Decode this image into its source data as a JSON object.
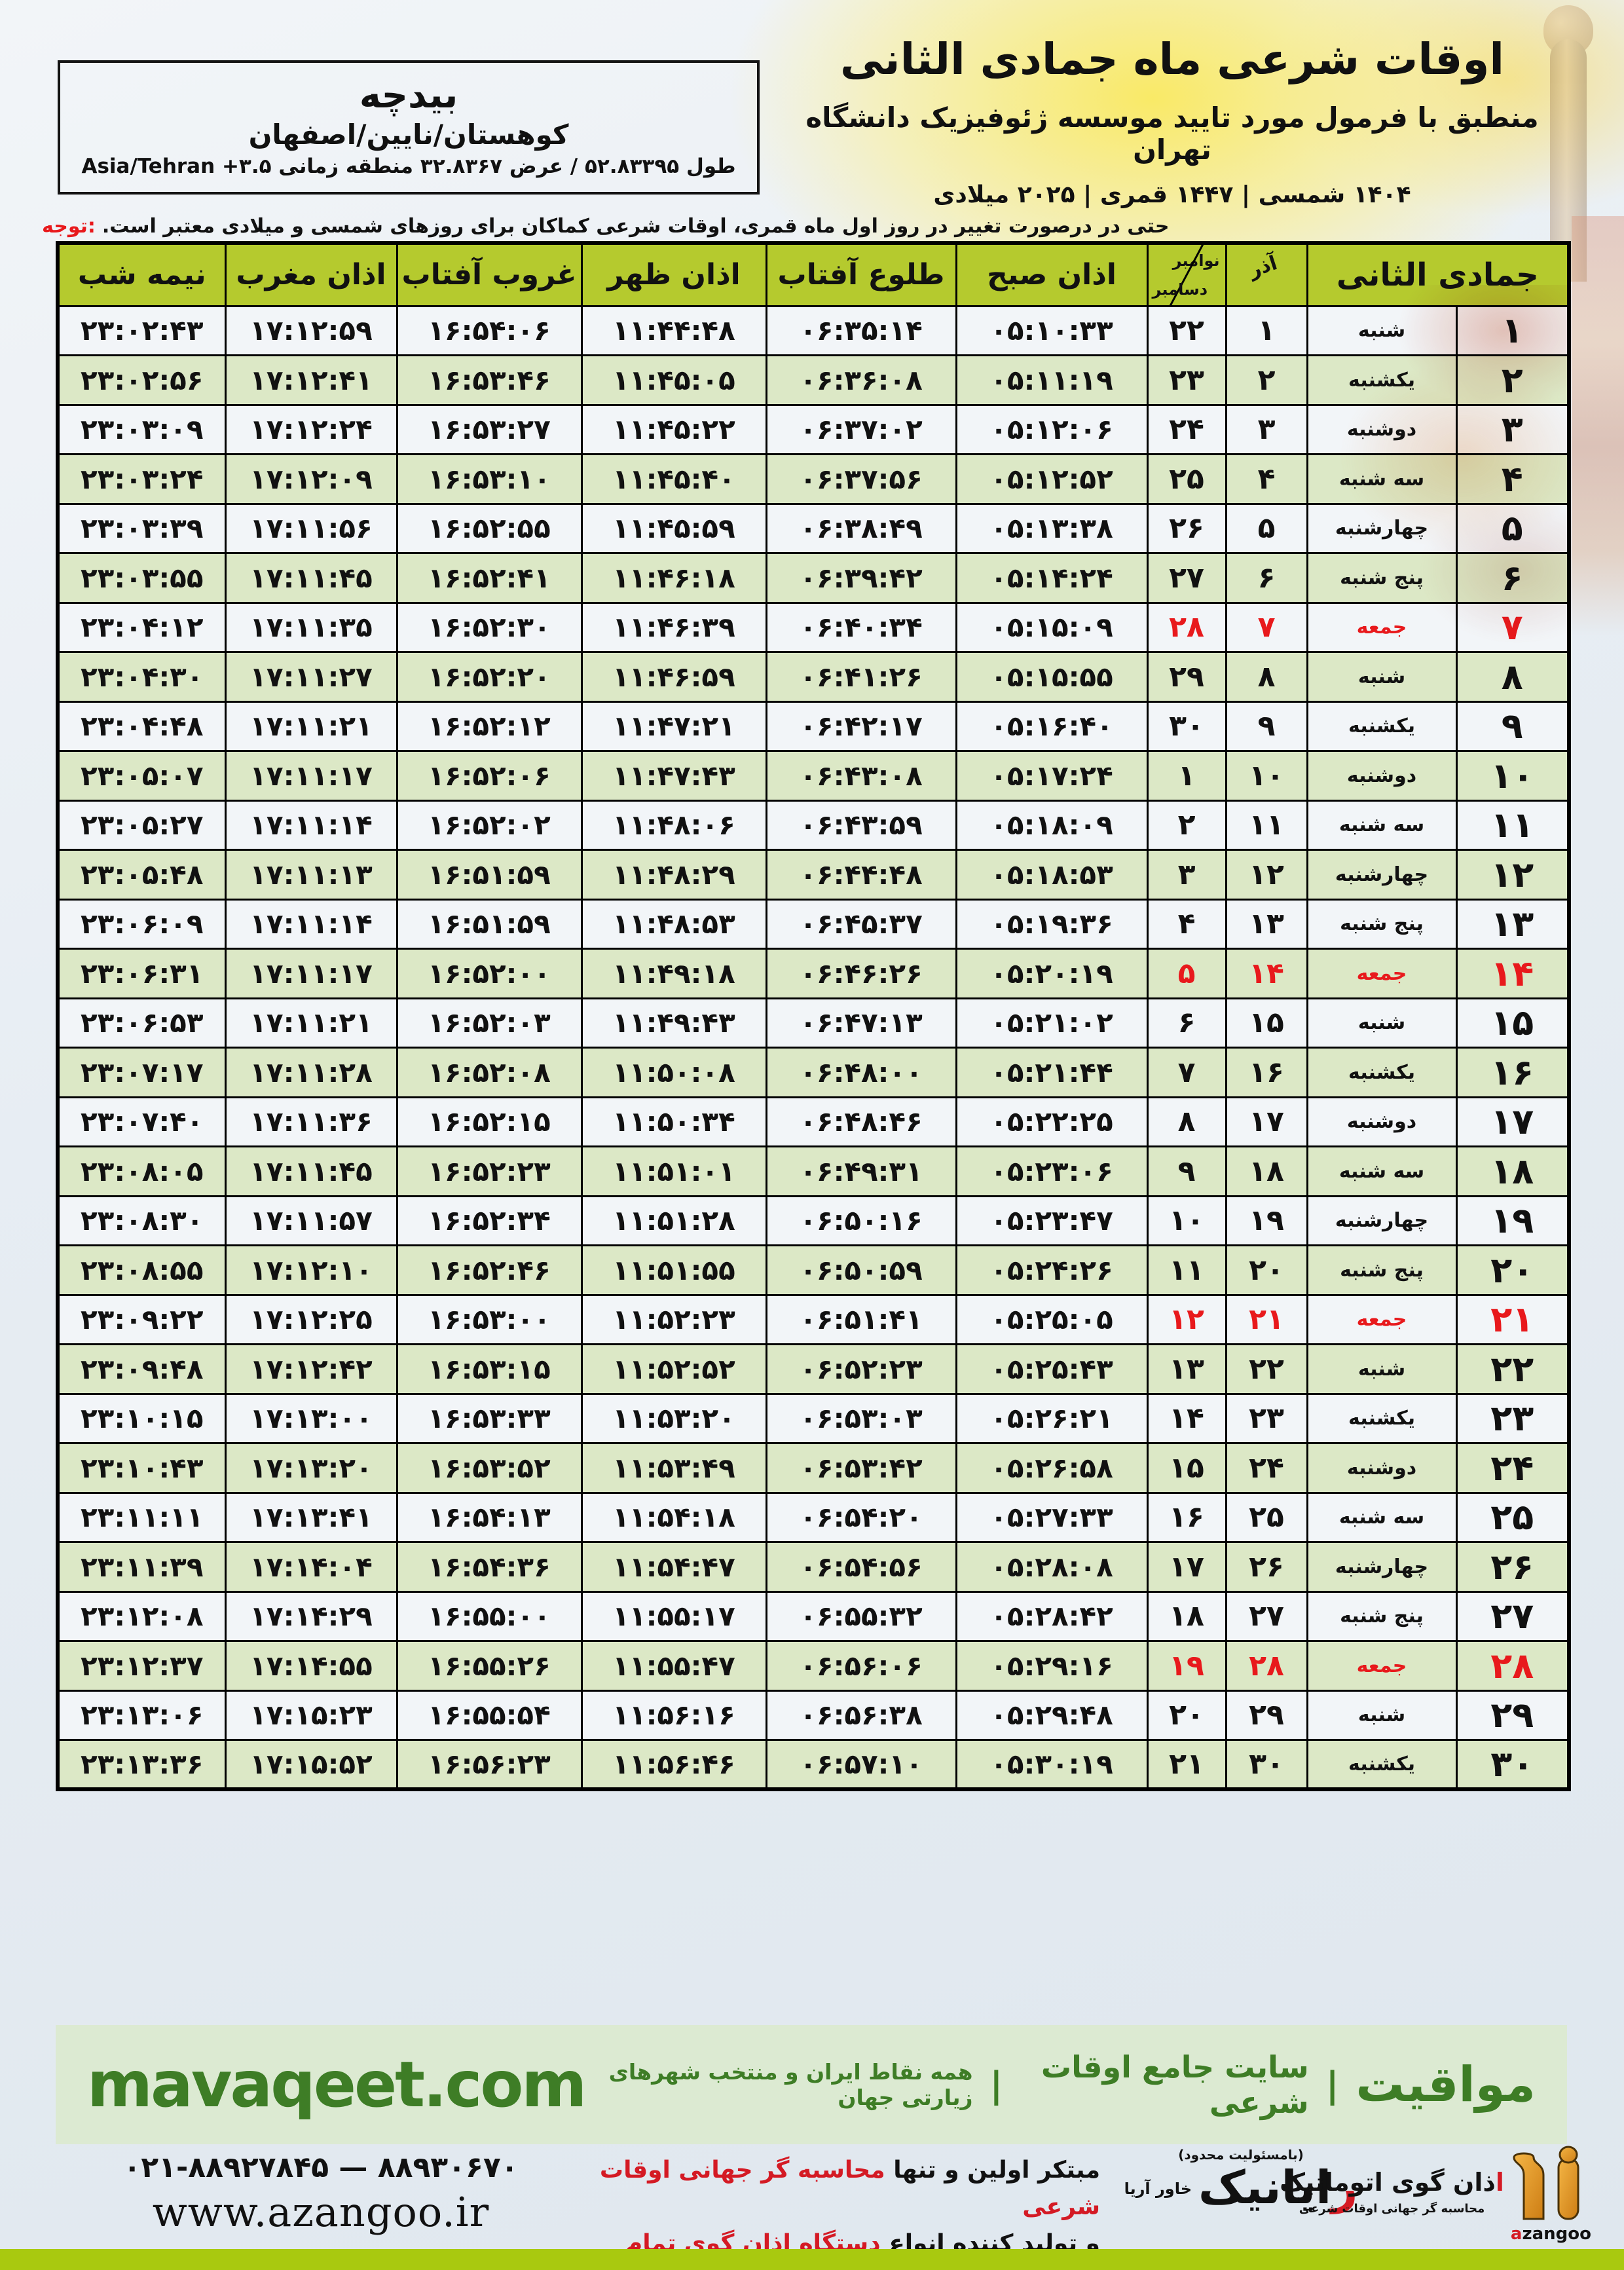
{
  "meta": {
    "title": "اوقات شرعی ماه جمادی الثانی",
    "subtitle": "منطبق با فرمول مورد تایید موسسه ژئوفیزیک دانشگاه تهران",
    "dates_line": "۱۴۰۴ شمسی | ۱۴۴۷ قمری | ۲۰۲۵ میلادی"
  },
  "location": {
    "name": "بیدچه",
    "region": "کوهستان/نایین/اصفهان",
    "coords": "طول ۵۲.۸۳۳۹۵ / عرض ۳۲.۸۳۶۷ منطقه زمانی Asia/Tehran +۳.۵"
  },
  "note": {
    "label": "توجه:",
    "text": "حتی در درصورت تغییر در روز اول ماه قمری، اوقات شرعی کماکان برای روزهای شمسی و میلادی معتبر است."
  },
  "table": {
    "headers": {
      "month": "جمادی الثانی",
      "azar": "آذر",
      "nov": "نوامبر",
      "dec": "دسامبر",
      "fajr": "اذان صبح",
      "sunrise": "طلوع آفتاب",
      "dhuhr": "اذان ظهر",
      "sunset": "غروب آفتاب",
      "maghrib": "اذان مغرب",
      "midnight": "نیمه شب"
    },
    "rows": [
      {
        "jd": "۱",
        "weekday": "شنبه",
        "azar": "۱",
        "greg": "۲۲",
        "fajr": "۰۵:۱۰:۳۳",
        "sunrise": "۰۶:۳۵:۱۴",
        "dhuhr": "۱۱:۴۴:۴۸",
        "sunset": "۱۶:۵۴:۰۶",
        "maghrib": "۱۷:۱۲:۵۹",
        "midnight": "۲۳:۰۲:۴۳",
        "friday": false
      },
      {
        "jd": "۲",
        "weekday": "یکشنبه",
        "azar": "۲",
        "greg": "۲۳",
        "fajr": "۰۵:۱۱:۱۹",
        "sunrise": "۰۶:۳۶:۰۸",
        "dhuhr": "۱۱:۴۵:۰۵",
        "sunset": "۱۶:۵۳:۴۶",
        "maghrib": "۱۷:۱۲:۴۱",
        "midnight": "۲۳:۰۲:۵۶",
        "friday": false
      },
      {
        "jd": "۳",
        "weekday": "دوشنبه",
        "azar": "۳",
        "greg": "۲۴",
        "fajr": "۰۵:۱۲:۰۶",
        "sunrise": "۰۶:۳۷:۰۲",
        "dhuhr": "۱۱:۴۵:۲۲",
        "sunset": "۱۶:۵۳:۲۷",
        "maghrib": "۱۷:۱۲:۲۴",
        "midnight": "۲۳:۰۳:۰۹",
        "friday": false
      },
      {
        "jd": "۴",
        "weekday": "سه شنبه",
        "azar": "۴",
        "greg": "۲۵",
        "fajr": "۰۵:۱۲:۵۲",
        "sunrise": "۰۶:۳۷:۵۶",
        "dhuhr": "۱۱:۴۵:۴۰",
        "sunset": "۱۶:۵۳:۱۰",
        "maghrib": "۱۷:۱۲:۰۹",
        "midnight": "۲۳:۰۳:۲۴",
        "friday": false
      },
      {
        "jd": "۵",
        "weekday": "چهارشنبه",
        "azar": "۵",
        "greg": "۲۶",
        "fajr": "۰۵:۱۳:۳۸",
        "sunrise": "۰۶:۳۸:۴۹",
        "dhuhr": "۱۱:۴۵:۵۹",
        "sunset": "۱۶:۵۲:۵۵",
        "maghrib": "۱۷:۱۱:۵۶",
        "midnight": "۲۳:۰۳:۳۹",
        "friday": false
      },
      {
        "jd": "۶",
        "weekday": "پنج شنبه",
        "azar": "۶",
        "greg": "۲۷",
        "fajr": "۰۵:۱۴:۲۴",
        "sunrise": "۰۶:۳۹:۴۲",
        "dhuhr": "۱۱:۴۶:۱۸",
        "sunset": "۱۶:۵۲:۴۱",
        "maghrib": "۱۷:۱۱:۴۵",
        "midnight": "۲۳:۰۳:۵۵",
        "friday": false
      },
      {
        "jd": "۷",
        "weekday": "جمعه",
        "azar": "۷",
        "greg": "۲۸",
        "fajr": "۰۵:۱۵:۰۹",
        "sunrise": "۰۶:۴۰:۳۴",
        "dhuhr": "۱۱:۴۶:۳۹",
        "sunset": "۱۶:۵۲:۳۰",
        "maghrib": "۱۷:۱۱:۳۵",
        "midnight": "۲۳:۰۴:۱۲",
        "friday": true
      },
      {
        "jd": "۸",
        "weekday": "شنبه",
        "azar": "۸",
        "greg": "۲۹",
        "fajr": "۰۵:۱۵:۵۵",
        "sunrise": "۰۶:۴۱:۲۶",
        "dhuhr": "۱۱:۴۶:۵۹",
        "sunset": "۱۶:۵۲:۲۰",
        "maghrib": "۱۷:۱۱:۲۷",
        "midnight": "۲۳:۰۴:۳۰",
        "friday": false
      },
      {
        "jd": "۹",
        "weekday": "یکشنبه",
        "azar": "۹",
        "greg": "۳۰",
        "fajr": "۰۵:۱۶:۴۰",
        "sunrise": "۰۶:۴۲:۱۷",
        "dhuhr": "۱۱:۴۷:۲۱",
        "sunset": "۱۶:۵۲:۱۲",
        "maghrib": "۱۷:۱۱:۲۱",
        "midnight": "۲۳:۰۴:۴۸",
        "friday": false
      },
      {
        "jd": "۱۰",
        "weekday": "دوشنبه",
        "azar": "۱۰",
        "greg": "۱",
        "fajr": "۰۵:۱۷:۲۴",
        "sunrise": "۰۶:۴۳:۰۸",
        "dhuhr": "۱۱:۴۷:۴۳",
        "sunset": "۱۶:۵۲:۰۶",
        "maghrib": "۱۷:۱۱:۱۷",
        "midnight": "۲۳:۰۵:۰۷",
        "friday": false
      },
      {
        "jd": "۱۱",
        "weekday": "سه شنبه",
        "azar": "۱۱",
        "greg": "۲",
        "fajr": "۰۵:۱۸:۰۹",
        "sunrise": "۰۶:۴۳:۵۹",
        "dhuhr": "۱۱:۴۸:۰۶",
        "sunset": "۱۶:۵۲:۰۲",
        "maghrib": "۱۷:۱۱:۱۴",
        "midnight": "۲۳:۰۵:۲۷",
        "friday": false
      },
      {
        "jd": "۱۲",
        "weekday": "چهارشنبه",
        "azar": "۱۲",
        "greg": "۳",
        "fajr": "۰۵:۱۸:۵۳",
        "sunrise": "۰۶:۴۴:۴۸",
        "dhuhr": "۱۱:۴۸:۲۹",
        "sunset": "۱۶:۵۱:۵۹",
        "maghrib": "۱۷:۱۱:۱۳",
        "midnight": "۲۳:۰۵:۴۸",
        "friday": false
      },
      {
        "jd": "۱۳",
        "weekday": "پنج شنبه",
        "azar": "۱۳",
        "greg": "۴",
        "fajr": "۰۵:۱۹:۳۶",
        "sunrise": "۰۶:۴۵:۳۷",
        "dhuhr": "۱۱:۴۸:۵۳",
        "sunset": "۱۶:۵۱:۵۹",
        "maghrib": "۱۷:۱۱:۱۴",
        "midnight": "۲۳:۰۶:۰۹",
        "friday": false
      },
      {
        "jd": "۱۴",
        "weekday": "جمعه",
        "azar": "۱۴",
        "greg": "۵",
        "fajr": "۰۵:۲۰:۱۹",
        "sunrise": "۰۶:۴۶:۲۶",
        "dhuhr": "۱۱:۴۹:۱۸",
        "sunset": "۱۶:۵۲:۰۰",
        "maghrib": "۱۷:۱۱:۱۷",
        "midnight": "۲۳:۰۶:۳۱",
        "friday": true
      },
      {
        "jd": "۱۵",
        "weekday": "شنبه",
        "azar": "۱۵",
        "greg": "۶",
        "fajr": "۰۵:۲۱:۰۲",
        "sunrise": "۰۶:۴۷:۱۳",
        "dhuhr": "۱۱:۴۹:۴۳",
        "sunset": "۱۶:۵۲:۰۳",
        "maghrib": "۱۷:۱۱:۲۱",
        "midnight": "۲۳:۰۶:۵۳",
        "friday": false
      },
      {
        "jd": "۱۶",
        "weekday": "یکشنبه",
        "azar": "۱۶",
        "greg": "۷",
        "fajr": "۰۵:۲۱:۴۴",
        "sunrise": "۰۶:۴۸:۰۰",
        "dhuhr": "۱۱:۵۰:۰۸",
        "sunset": "۱۶:۵۲:۰۸",
        "maghrib": "۱۷:۱۱:۲۸",
        "midnight": "۲۳:۰۷:۱۷",
        "friday": false
      },
      {
        "jd": "۱۷",
        "weekday": "دوشنبه",
        "azar": "۱۷",
        "greg": "۸",
        "fajr": "۰۵:۲۲:۲۵",
        "sunrise": "۰۶:۴۸:۴۶",
        "dhuhr": "۱۱:۵۰:۳۴",
        "sunset": "۱۶:۵۲:۱۵",
        "maghrib": "۱۷:۱۱:۳۶",
        "midnight": "۲۳:۰۷:۴۰",
        "friday": false
      },
      {
        "jd": "۱۸",
        "weekday": "سه شنبه",
        "azar": "۱۸",
        "greg": "۹",
        "fajr": "۰۵:۲۳:۰۶",
        "sunrise": "۰۶:۴۹:۳۱",
        "dhuhr": "۱۱:۵۱:۰۱",
        "sunset": "۱۶:۵۲:۲۳",
        "maghrib": "۱۷:۱۱:۴۵",
        "midnight": "۲۳:۰۸:۰۵",
        "friday": false
      },
      {
        "jd": "۱۹",
        "weekday": "چهارشنبه",
        "azar": "۱۹",
        "greg": "۱۰",
        "fajr": "۰۵:۲۳:۴۷",
        "sunrise": "۰۶:۵۰:۱۶",
        "dhuhr": "۱۱:۵۱:۲۸",
        "sunset": "۱۶:۵۲:۳۴",
        "maghrib": "۱۷:۱۱:۵۷",
        "midnight": "۲۳:۰۸:۳۰",
        "friday": false
      },
      {
        "jd": "۲۰",
        "weekday": "پنج شنبه",
        "azar": "۲۰",
        "greg": "۱۱",
        "fajr": "۰۵:۲۴:۲۶",
        "sunrise": "۰۶:۵۰:۵۹",
        "dhuhr": "۱۱:۵۱:۵۵",
        "sunset": "۱۶:۵۲:۴۶",
        "maghrib": "۱۷:۱۲:۱۰",
        "midnight": "۲۳:۰۸:۵۵",
        "friday": false
      },
      {
        "jd": "۲۱",
        "weekday": "جمعه",
        "azar": "۲۱",
        "greg": "۱۲",
        "fajr": "۰۵:۲۵:۰۵",
        "sunrise": "۰۶:۵۱:۴۱",
        "dhuhr": "۱۱:۵۲:۲۳",
        "sunset": "۱۶:۵۳:۰۰",
        "maghrib": "۱۷:۱۲:۲۵",
        "midnight": "۲۳:۰۹:۲۲",
        "friday": true
      },
      {
        "jd": "۲۲",
        "weekday": "شنبه",
        "azar": "۲۲",
        "greg": "۱۳",
        "fajr": "۰۵:۲۵:۴۳",
        "sunrise": "۰۶:۵۲:۲۳",
        "dhuhr": "۱۱:۵۲:۵۲",
        "sunset": "۱۶:۵۳:۱۵",
        "maghrib": "۱۷:۱۲:۴۲",
        "midnight": "۲۳:۰۹:۴۸",
        "friday": false
      },
      {
        "jd": "۲۳",
        "weekday": "یکشنبه",
        "azar": "۲۳",
        "greg": "۱۴",
        "fajr": "۰۵:۲۶:۲۱",
        "sunrise": "۰۶:۵۳:۰۳",
        "dhuhr": "۱۱:۵۳:۲۰",
        "sunset": "۱۶:۵۳:۳۳",
        "maghrib": "۱۷:۱۳:۰۰",
        "midnight": "۲۳:۱۰:۱۵",
        "friday": false
      },
      {
        "jd": "۲۴",
        "weekday": "دوشنبه",
        "azar": "۲۴",
        "greg": "۱۵",
        "fajr": "۰۵:۲۶:۵۸",
        "sunrise": "۰۶:۵۳:۴۲",
        "dhuhr": "۱۱:۵۳:۴۹",
        "sunset": "۱۶:۵۳:۵۲",
        "maghrib": "۱۷:۱۳:۲۰",
        "midnight": "۲۳:۱۰:۴۳",
        "friday": false
      },
      {
        "jd": "۲۵",
        "weekday": "سه شنبه",
        "azar": "۲۵",
        "greg": "۱۶",
        "fajr": "۰۵:۲۷:۳۳",
        "sunrise": "۰۶:۵۴:۲۰",
        "dhuhr": "۱۱:۵۴:۱۸",
        "sunset": "۱۶:۵۴:۱۳",
        "maghrib": "۱۷:۱۳:۴۱",
        "midnight": "۲۳:۱۱:۱۱",
        "friday": false
      },
      {
        "jd": "۲۶",
        "weekday": "چهارشنبه",
        "azar": "۲۶",
        "greg": "۱۷",
        "fajr": "۰۵:۲۸:۰۸",
        "sunrise": "۰۶:۵۴:۵۶",
        "dhuhr": "۱۱:۵۴:۴۷",
        "sunset": "۱۶:۵۴:۳۶",
        "maghrib": "۱۷:۱۴:۰۴",
        "midnight": "۲۳:۱۱:۳۹",
        "friday": false
      },
      {
        "jd": "۲۷",
        "weekday": "پنج شنبه",
        "azar": "۲۷",
        "greg": "۱۸",
        "fajr": "۰۵:۲۸:۴۲",
        "sunrise": "۰۶:۵۵:۳۲",
        "dhuhr": "۱۱:۵۵:۱۷",
        "sunset": "۱۶:۵۵:۰۰",
        "maghrib": "۱۷:۱۴:۲۹",
        "midnight": "۲۳:۱۲:۰۸",
        "friday": false
      },
      {
        "jd": "۲۸",
        "weekday": "جمعه",
        "azar": "۲۸",
        "greg": "۱۹",
        "fajr": "۰۵:۲۹:۱۶",
        "sunrise": "۰۶:۵۶:۰۶",
        "dhuhr": "۱۱:۵۵:۴۷",
        "sunset": "۱۶:۵۵:۲۶",
        "maghrib": "۱۷:۱۴:۵۵",
        "midnight": "۲۳:۱۲:۳۷",
        "friday": true
      },
      {
        "jd": "۲۹",
        "weekday": "شنبه",
        "azar": "۲۹",
        "greg": "۲۰",
        "fajr": "۰۵:۲۹:۴۸",
        "sunrise": "۰۶:۵۶:۳۸",
        "dhuhr": "۱۱:۵۶:۱۶",
        "sunset": "۱۶:۵۵:۵۴",
        "maghrib": "۱۷:۱۵:۲۳",
        "midnight": "۲۳:۱۳:۰۶",
        "friday": false
      },
      {
        "jd": "۳۰",
        "weekday": "یکشنبه",
        "azar": "۳۰",
        "greg": "۲۱",
        "fajr": "۰۵:۳۰:۱۹",
        "sunrise": "۰۶:۵۷:۱۰",
        "dhuhr": "۱۱:۵۶:۴۶",
        "sunset": "۱۶:۵۶:۲۳",
        "maghrib": "۱۷:۱۵:۵۲",
        "midnight": "۲۳:۱۳:۳۶",
        "friday": false
      }
    ]
  },
  "footer": {
    "site_url": "mavaqeet.com",
    "brand_name": "مواقیت",
    "separator": "|",
    "brand_desc1": "سایت جامع اوقات شرعی",
    "brand_desc2": "همه نقاط ایران و منتخب شهرهای زیارتی جهان",
    "phone": "۰۲۱-۸۸۹۲۷۸۴۵ — ۸۸۹۳۰۶۷۰",
    "website": "www.azangoo.ir",
    "promo_black1": "مبتکر اولین و تنها ",
    "promo_red1": "محاسبه گر جهانی اوقات شرعی",
    "promo_black2": "و تولید کننده انواع ",
    "promo_red2": "دستگاه اذان گوی تمام خودکار ماهواره ای",
    "rayanik_note": "(بامسئولیت محدود)",
    "rayanik_first": "ر",
    "rayanik_rest": "ایانیک",
    "rayanik_sub": "خاور آریا",
    "azangoo_first": "ا",
    "azangoo_rest": "ذان گوی اتوماتیک",
    "azangoo_sub": "محاسبه گر جهانی اوقات شرعی",
    "azangoo_en_first": "a",
    "azangoo_en_rest": "zangoo"
  },
  "colors": {
    "header_green": "#b5ca2e",
    "row_green": "#dce8c6",
    "row_white": "#f2f5f8",
    "friday_red": "#e8191c",
    "footer_bar": "#dcead2",
    "footer_green": "#3e7d26",
    "lime_bar": "#a9c90f"
  }
}
